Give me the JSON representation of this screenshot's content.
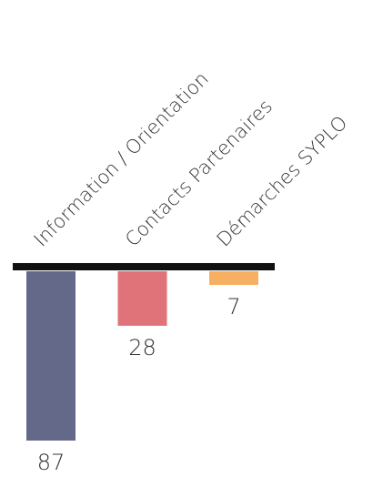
{
  "chart_data": {
    "type": "bar",
    "categories": [
      "Information / Orientation",
      "Contacts Partenaires",
      "Démarches SYPLO"
    ],
    "values": [
      87,
      28,
      7
    ],
    "colors": [
      "#646889",
      "#e0727a",
      "#f7b062"
    ]
  }
}
